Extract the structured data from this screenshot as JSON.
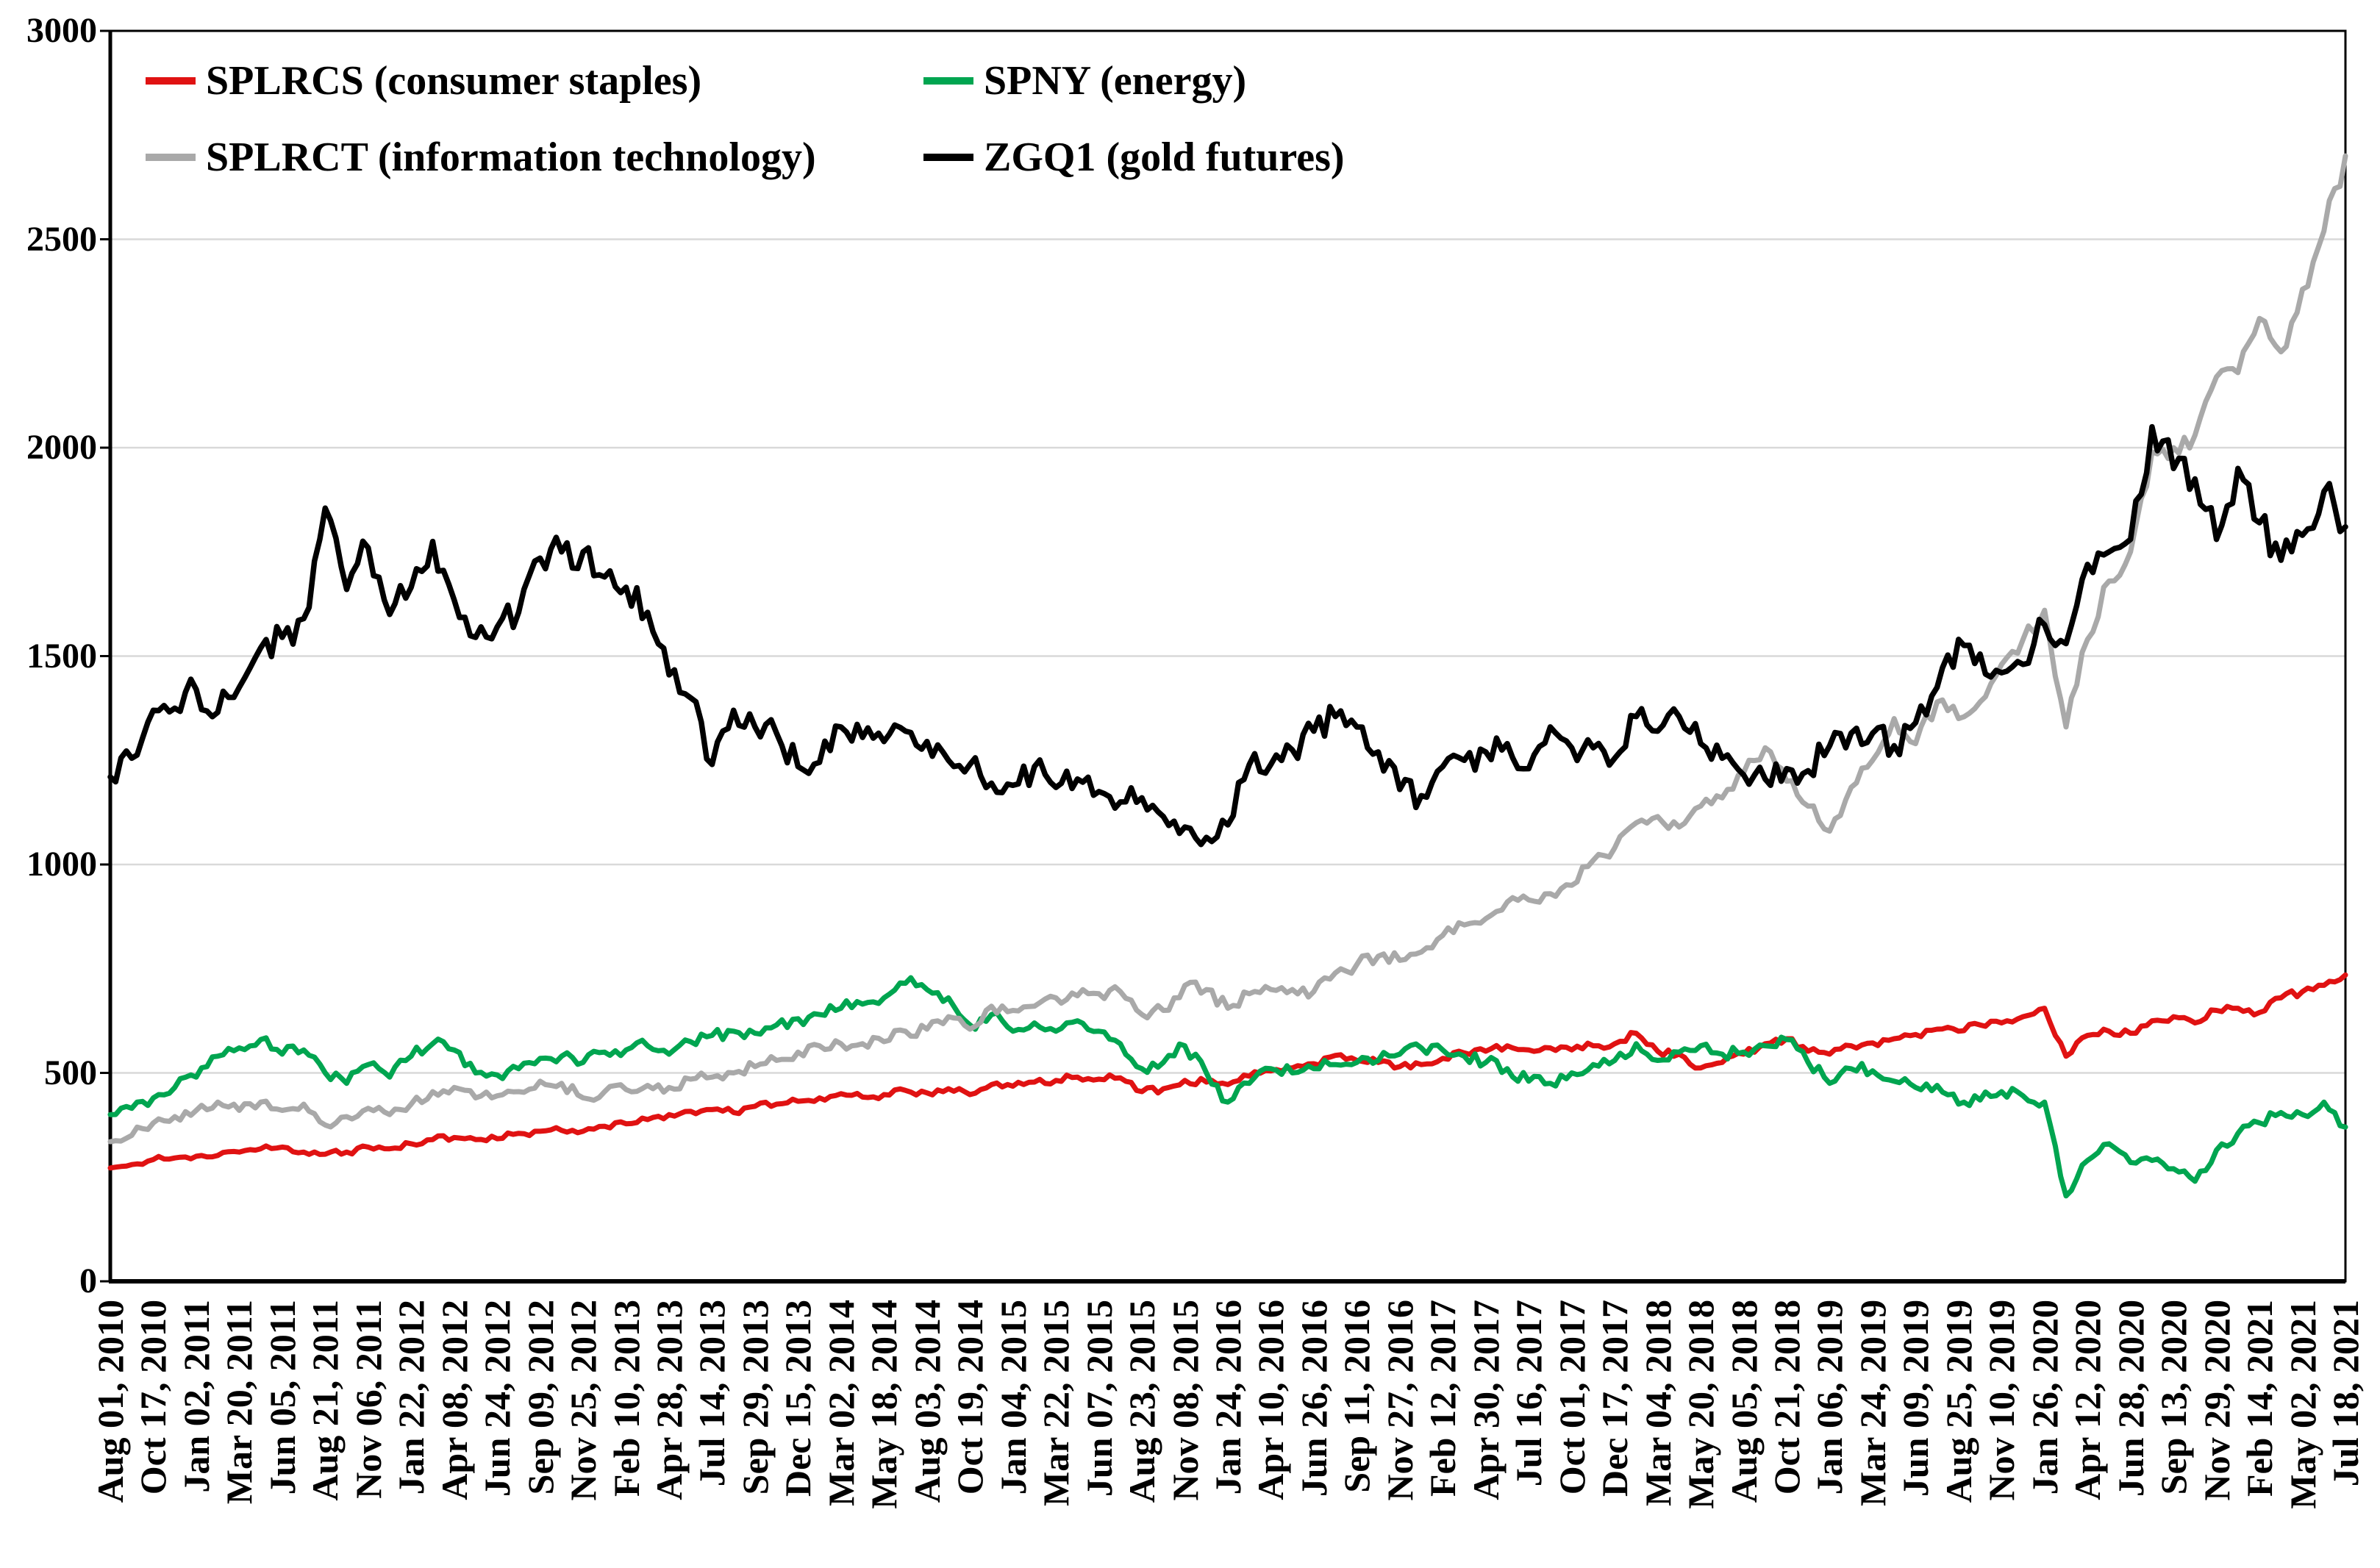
{
  "chart_data": {
    "type": "line",
    "title": "",
    "xlabel": "",
    "ylabel": "",
    "ylim": [
      0,
      3000
    ],
    "y_ticks": [
      0,
      500,
      1000,
      1500,
      2000,
      2500,
      3000
    ],
    "grid": "horizontal",
    "gridline_color": "#d9d9d9",
    "axis_color": "#000000",
    "legend_position": "top-left-inside",
    "points_per_tick_interval": 2,
    "x_tick_labels": [
      "Aug 01, 2010",
      "Oct 17, 2010",
      "Jan 02, 2011",
      "Mar 20, 2011",
      "Jun 05, 2011",
      "Aug 21, 2011",
      "Nov 06, 2011",
      "Jan 22, 2012",
      "Apr 08, 2012",
      "Jun 24, 2012",
      "Sep 09, 2012",
      "Nov 25, 2012",
      "Feb 10, 2013",
      "Apr 28, 2013",
      "Jul 14, 2013",
      "Sep 29, 2013",
      "Dec 15, 2013",
      "Mar 02, 2014",
      "May 18, 2014",
      "Aug 03, 2014",
      "Oct 19, 2014",
      "Jan 04, 2015",
      "Mar 22, 2015",
      "Jun 07, 2015",
      "Aug 23, 2015",
      "Nov 08, 2015",
      "Jan 24, 2016",
      "Apr 10, 2016",
      "Jun 26, 2016",
      "Sep 11, 2016",
      "Nov 27, 2016",
      "Feb 12, 2017",
      "Apr 30, 2017",
      "Jul 16, 2017",
      "Oct 01, 2017",
      "Dec 17, 2017",
      "Mar 04, 2018",
      "May 20, 2018",
      "Aug 05, 2018",
      "Oct 21, 2018",
      "Jan 06, 2019",
      "Mar 24, 2019",
      "Jun 09, 2019",
      "Aug 25, 2019",
      "Nov 10, 2019",
      "Jan 26, 2020",
      "Apr 12, 2020",
      "Jun 28, 2020",
      "Sep 13, 2020",
      "Nov 29, 2020",
      "Feb 14, 2021",
      "May 02, 2021",
      "Jul 18, 2021"
    ],
    "series": [
      {
        "name": "SPLRCS (consumer staples)",
        "slug": "splrcs",
        "color": "#e01212",
        "values": [
          272,
          280,
          292,
          296,
          300,
          302,
          310,
          318,
          322,
          310,
          305,
          310,
          322,
          318,
          330,
          340,
          345,
          340,
          342,
          355,
          360,
          362,
          360,
          372,
          378,
          388,
          400,
          408,
          412,
          405,
          420,
          425,
          432,
          440,
          450,
          442,
          448,
          458,
          452,
          462,
          448,
          472,
          468,
          478,
          482,
          490,
          485,
          488,
          455,
          462,
          482,
          478,
          472,
          492,
          505,
          512,
          522,
          542,
          530,
          525,
          515,
          520,
          535,
          548,
          552,
          565,
          555,
          560,
          555,
          565,
          570,
          595,
          552,
          545,
          512,
          525,
          545,
          570,
          582,
          552,
          545,
          565,
          572,
          582,
          592,
          605,
          600,
          615,
          620,
          635,
          655,
          540,
          590,
          600,
          595,
          625,
          635,
          620,
          650,
          655,
          645,
          680,
          695,
          710,
          735
        ]
      },
      {
        "name": "SPNY (energy)",
        "slug": "spny",
        "color": "#00a550",
        "values": [
          400,
          415,
          440,
          465,
          490,
          540,
          560,
          580,
          545,
          555,
          500,
          475,
          520,
          490,
          540,
          570,
          555,
          500,
          495,
          510,
          535,
          540,
          525,
          550,
          555,
          565,
          545,
          575,
          590,
          600,
          595,
          615,
          630,
          640,
          655,
          665,
          680,
          715,
          700,
          680,
          615,
          640,
          600,
          620,
          600,
          625,
          600,
          570,
          510,
          525,
          565,
          500,
          430,
          475,
          510,
          500,
          510,
          520,
          525,
          530,
          545,
          560,
          555,
          540,
          525,
          510,
          480,
          475,
          500,
          520,
          530,
          570,
          530,
          550,
          565,
          545,
          550,
          565,
          580,
          525,
          475,
          510,
          505,
          480,
          465,
          470,
          425,
          435,
          455,
          445,
          430,
          205,
          290,
          330,
          285,
          290,
          270,
          240,
          315,
          355,
          380,
          405,
          400,
          430,
          370
        ]
      },
      {
        "name": "SPLRCT (information technology)",
        "slug": "splrct",
        "color": "#a9a9a9",
        "values": [
          335,
          350,
          380,
          395,
          410,
          430,
          410,
          430,
          410,
          425,
          375,
          395,
          415,
          400,
          425,
          455,
          465,
          440,
          445,
          455,
          480,
          475,
          440,
          455,
          460,
          470,
          465,
          485,
          490,
          500,
          515,
          530,
          550,
          565,
          570,
          570,
          575,
          600,
          605,
          635,
          605,
          660,
          650,
          660,
          680,
          685,
          690,
          695,
          640,
          650,
          710,
          700,
          655,
          690,
          700,
          700,
          695,
          740,
          760,
          780,
          770,
          790,
          830,
          855,
          870,
          910,
          915,
          930,
          950,
          1010,
          1040,
          1100,
          1115,
          1090,
          1140,
          1160,
          1220,
          1280,
          1200,
          1140,
          1080,
          1185,
          1250,
          1350,
          1290,
          1390,
          1350,
          1390,
          1480,
          1540,
          1610,
          1330,
          1540,
          1680,
          1750,
          1990,
          2000,
          2030,
          2170,
          2180,
          2310,
          2230,
          2380,
          2520,
          2700
        ]
      },
      {
        "name": "ZGQ1 (gold futures)",
        "slug": "zgq1",
        "color": "#000000",
        "values": [
          1210,
          1255,
          1370,
          1375,
          1420,
          1365,
          1425,
          1520,
          1545,
          1590,
          1855,
          1660,
          1760,
          1600,
          1665,
          1775,
          1635,
          1545,
          1570,
          1605,
          1735,
          1750,
          1750,
          1690,
          1665,
          1605,
          1455,
          1400,
          1240,
          1370,
          1330,
          1315,
          1235,
          1245,
          1330,
          1305,
          1295,
          1320,
          1295,
          1250,
          1240,
          1195,
          1190,
          1235,
          1185,
          1205,
          1175,
          1150,
          1160,
          1115,
          1090,
          1065,
          1095,
          1240,
          1240,
          1275,
          1320,
          1355,
          1330,
          1270,
          1180,
          1165,
          1235,
          1250,
          1270,
          1290,
          1230,
          1330,
          1280,
          1280,
          1255,
          1355,
          1320,
          1355,
          1290,
          1255,
          1215,
          1205,
          1230,
          1225,
          1285,
          1315,
          1315,
          1285,
          1340,
          1425,
          1540,
          1505,
          1460,
          1480,
          1575,
          1530,
          1720,
          1750,
          1780,
          2050,
          1950,
          1925,
          1780,
          1950,
          1820,
          1730,
          1790,
          1895,
          1810
        ]
      }
    ]
  }
}
